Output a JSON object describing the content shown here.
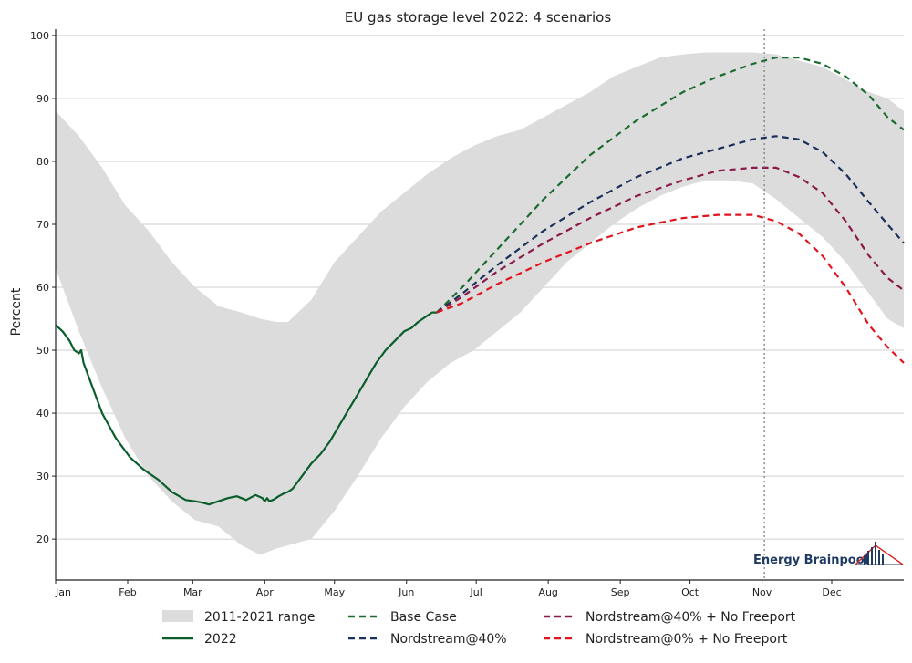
{
  "chart_data": {
    "type": "line",
    "title": "EU gas storage level 2022: 4 scenarios",
    "xlabel": "",
    "ylabel": "Percent",
    "ylim": [
      13.5,
      101
    ],
    "yticks": [
      20,
      30,
      40,
      50,
      60,
      70,
      80,
      90,
      100
    ],
    "xlim": [
      0,
      365
    ],
    "x_tick_labels": [
      "Jan",
      "Feb",
      "Mar",
      "Apr",
      "May",
      "Jun",
      "Jul",
      "Aug",
      "Sep",
      "Oct",
      "Nov",
      "Dec"
    ],
    "x_tick_days": [
      0,
      31,
      59,
      90,
      120,
      151,
      181,
      212,
      243,
      273,
      304,
      334
    ],
    "grid": "horizontal",
    "vline_day": 305,
    "range_band": {
      "name": "2011-2021 range",
      "color": "#dcdcdc",
      "x": [
        0,
        10,
        20,
        30,
        40,
        50,
        60,
        70,
        80,
        88,
        95,
        100,
        110,
        120,
        130,
        140,
        150,
        160,
        170,
        180,
        190,
        200,
        210,
        220,
        230,
        240,
        250,
        260,
        270,
        280,
        290,
        300,
        310,
        320,
        330,
        340,
        350,
        358,
        365
      ],
      "upper": [
        88,
        84,
        79,
        73,
        69,
        64,
        60,
        57,
        56,
        55,
        54.5,
        54.5,
        58,
        64,
        68,
        72,
        75,
        78,
        80.5,
        82.5,
        84,
        85,
        87,
        89,
        91,
        93.5,
        95,
        96.5,
        97,
        97.3,
        97.3,
        97.3,
        97,
        96,
        95,
        93,
        91,
        90,
        88
      ],
      "lower": [
        63,
        53,
        44,
        36,
        30,
        26,
        23,
        22,
        19,
        17.5,
        18.5,
        19,
        20,
        24.5,
        30,
        36,
        41,
        45,
        48,
        50,
        53,
        56,
        60,
        64,
        67,
        70,
        72.5,
        74.5,
        76,
        77,
        77,
        76.5,
        74,
        71,
        68,
        64,
        59,
        55,
        53.5
      ]
    },
    "series": [
      {
        "name": "2022",
        "color": "#0a5e2c",
        "style": "solid",
        "x": [
          0,
          3,
          6,
          8,
          10,
          11,
          12,
          14,
          20,
          26,
          32,
          38,
          44,
          50,
          56,
          60,
          63,
          66,
          70,
          74,
          78,
          82,
          86,
          89,
          90,
          91,
          92,
          94,
          96,
          98,
          100,
          102,
          104,
          106,
          110,
          114,
          118,
          122,
          126,
          130,
          134,
          138,
          142,
          146,
          150,
          153,
          156,
          158,
          160,
          162,
          164
        ],
        "y": [
          54,
          53,
          51.5,
          50,
          49.5,
          50,
          48,
          46,
          40,
          36,
          33,
          31,
          29.5,
          27.5,
          26.2,
          26,
          25.8,
          25.5,
          26,
          26.5,
          26.8,
          26.2,
          27,
          26.5,
          26,
          26.5,
          26,
          26.3,
          26.8,
          27.2,
          27.5,
          28,
          29,
          30,
          32,
          33.5,
          35.5,
          38,
          40.5,
          43,
          45.5,
          48,
          50,
          51.5,
          53,
          53.5,
          54.5,
          55,
          55.5,
          56,
          56
        ]
      },
      {
        "name": "Base Case",
        "color": "#1a6b2e",
        "style": "dashed",
        "x": [
          164,
          175,
          190,
          210,
          230,
          250,
          270,
          285,
          300,
          310,
          320,
          330,
          340,
          350,
          358,
          365
        ],
        "y": [
          56,
          60,
          66,
          74,
          81,
          86.5,
          91,
          93.5,
          95.5,
          96.5,
          96.5,
          95.5,
          93.5,
          90.5,
          87,
          85
        ]
      },
      {
        "name": "Nordstream@40%",
        "color": "#1a2f5a",
        "style": "dashed",
        "x": [
          164,
          175,
          190,
          210,
          230,
          250,
          270,
          285,
          300,
          310,
          320,
          330,
          340,
          350,
          358,
          365
        ],
        "y": [
          56,
          59,
          63.5,
          69,
          73.5,
          77.5,
          80.5,
          82,
          83.5,
          84,
          83.5,
          81.5,
          78,
          73.5,
          70,
          67
        ]
      },
      {
        "name": "Nordstream@40% + No Freeport",
        "color": "#8b1a4a",
        "style": "dashed",
        "x": [
          164,
          175,
          190,
          210,
          230,
          250,
          270,
          285,
          300,
          310,
          320,
          330,
          340,
          350,
          358,
          365
        ],
        "y": [
          56,
          58.5,
          62.5,
          67,
          71,
          74.5,
          77,
          78.5,
          79,
          79,
          77.5,
          75,
          70.5,
          65,
          61.5,
          59.5
        ]
      },
      {
        "name": "Nordstream@0% + No Freeport",
        "color": "#e0141e",
        "style": "dashed",
        "x": [
          164,
          175,
          190,
          210,
          230,
          250,
          270,
          285,
          300,
          310,
          320,
          330,
          340,
          350,
          358,
          365
        ],
        "y": [
          56,
          57.5,
          60.5,
          64,
          67,
          69.5,
          71,
          71.5,
          71.5,
          70.5,
          68.5,
          65,
          60,
          54,
          50.5,
          48
        ]
      }
    ],
    "legend_position": "bottom"
  },
  "brand": {
    "text": "Energy Brainpool",
    "color": "#1f3b64",
    "accent": "#d62728"
  }
}
